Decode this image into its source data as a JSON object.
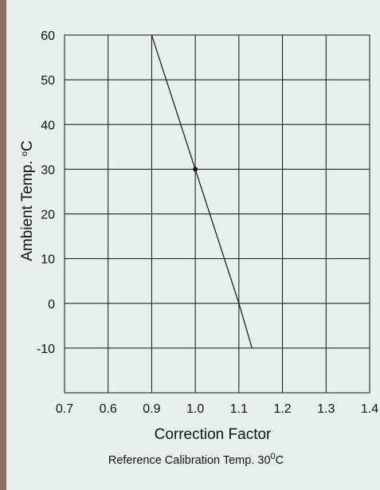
{
  "chart_data": {
    "type": "line",
    "xlabel": "Correction Factor",
    "ylabel": {
      "prefix": "Ambient Temp. ",
      "superscript": "o",
      "suffix": "C"
    },
    "caption": {
      "prefix": "Reference Calibration Temp. 30",
      "superscript": "0",
      "suffix": "C"
    },
    "x_ticks": [
      "0.7",
      "0.6",
      "0.9",
      "1.0",
      "1.1",
      "1.2",
      "1.3",
      "1.4"
    ],
    "y_ticks": [
      "60",
      "50",
      "40",
      "30",
      "20",
      "10",
      "0",
      "-10"
    ],
    "xlim": [
      0.7,
      1.4
    ],
    "ylim": [
      -20,
      60
    ],
    "grid": true,
    "series": [
      {
        "x": [
          0.9,
          1.0,
          1.1,
          1.13
        ],
        "y": [
          60,
          30,
          0,
          -10
        ],
        "color": "#111111"
      }
    ],
    "marked_points": [
      {
        "x": 1.0,
        "y": 30
      }
    ]
  }
}
